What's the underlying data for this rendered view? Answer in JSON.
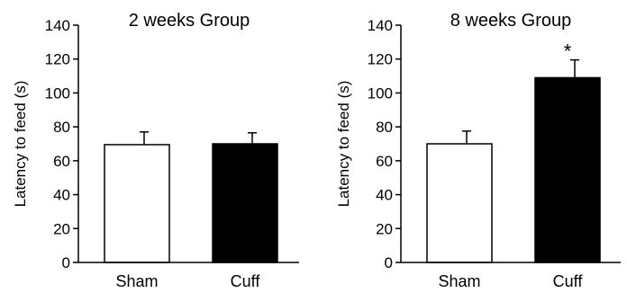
{
  "chart_data": [
    {
      "type": "bar",
      "title": "2 weeks Group",
      "ylabel": "Latency to feed (s)",
      "xlabel": "",
      "ylim": [
        0,
        140
      ],
      "yticks": [
        0,
        20,
        40,
        60,
        80,
        100,
        120,
        140
      ],
      "categories": [
        "Sham",
        "Cuff"
      ],
      "values": [
        69.5,
        70
      ],
      "errors": [
        7.5,
        6.5
      ],
      "bar_colors": [
        "#ffffff",
        "#000000"
      ],
      "annotations": [
        "",
        ""
      ]
    },
    {
      "type": "bar",
      "title": "8 weeks Group",
      "ylabel": "Latency to feed (s)",
      "xlabel": "",
      "ylim": [
        0,
        140
      ],
      "yticks": [
        0,
        20,
        40,
        60,
        80,
        100,
        120,
        140
      ],
      "categories": [
        "Sham",
        "Cuff"
      ],
      "values": [
        70,
        109
      ],
      "errors": [
        7.5,
        10.5
      ],
      "bar_colors": [
        "#ffffff",
        "#000000"
      ],
      "annotations": [
        "",
        "*"
      ]
    }
  ]
}
